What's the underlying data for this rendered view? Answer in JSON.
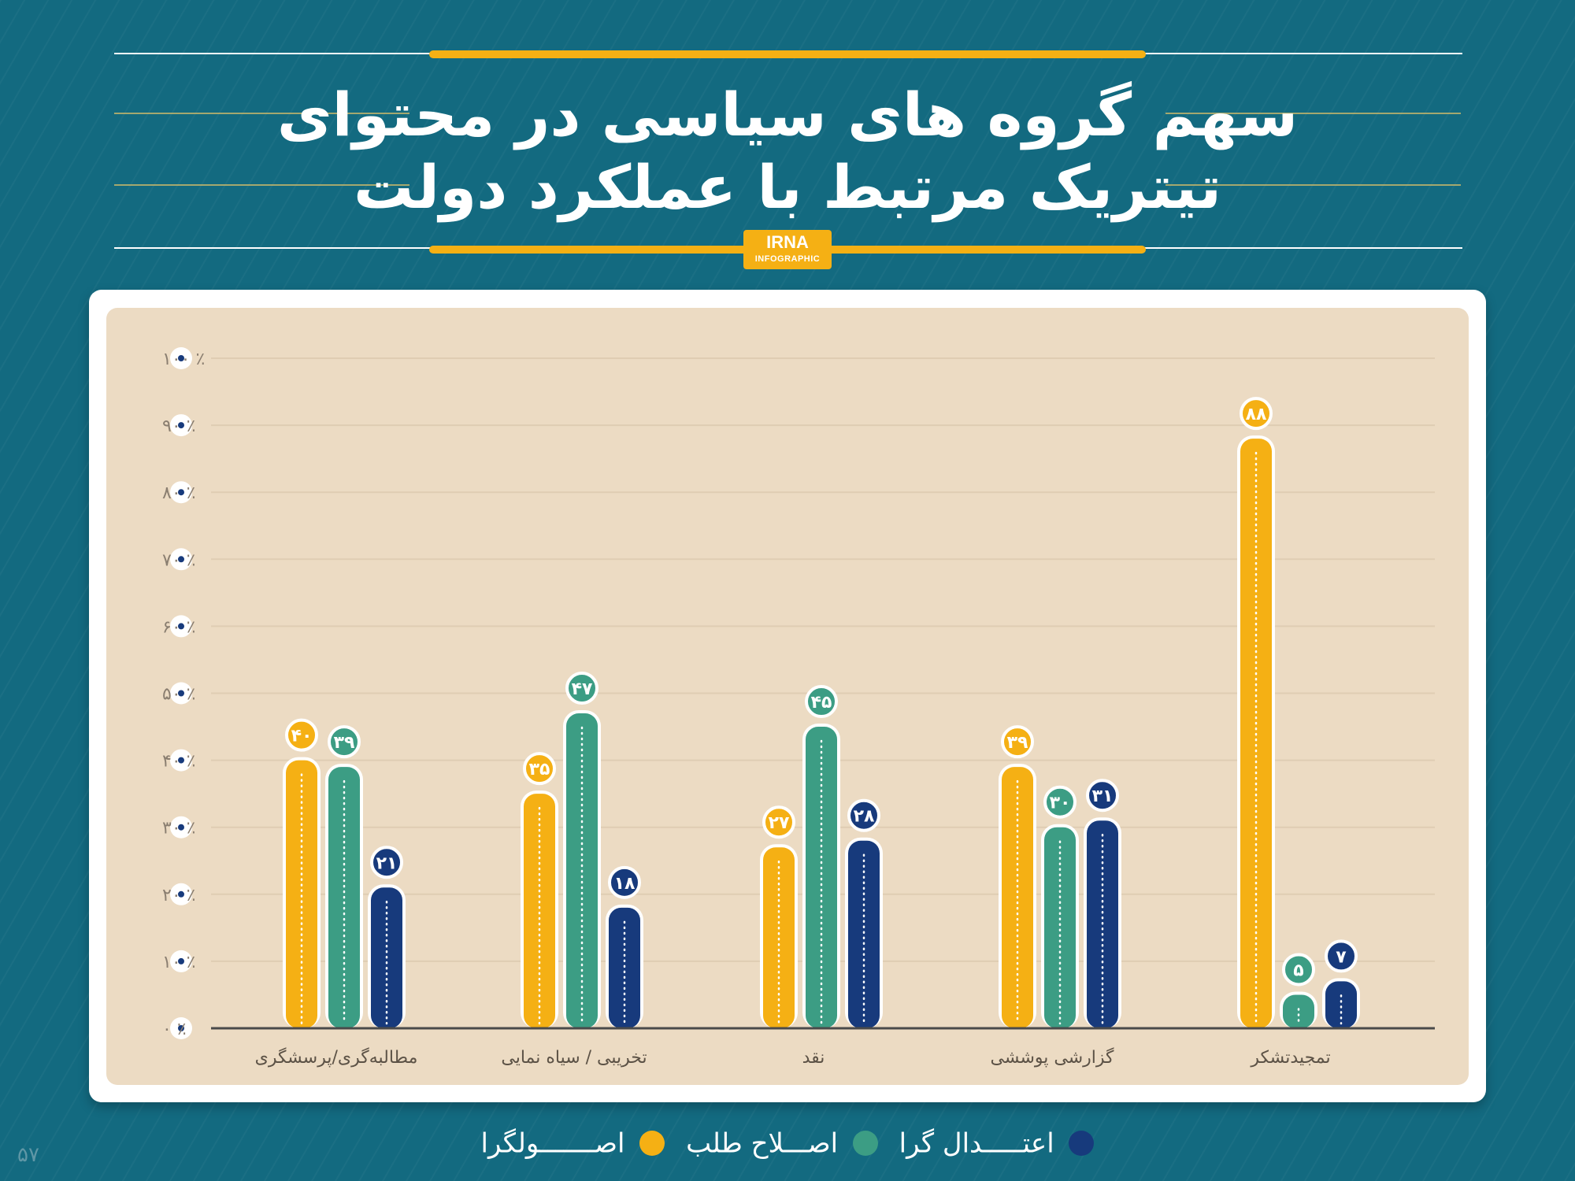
{
  "header": {
    "title_line1": "سهم گروه های سیاسی در محتوای",
    "title_line2": "تیتریک مرتبط با عملکرد دولت",
    "logo_top": "IRNA",
    "logo_bottom": "INFOGRAPHIC"
  },
  "colors": {
    "background": "#136a80",
    "panel": "#ecdbc3",
    "osulgara": "#f5b014",
    "eslahtalab": "#3c9d84",
    "etedalgara": "#173a7c"
  },
  "chart_data": {
    "type": "bar",
    "title": "سهم گروه های سیاسی در محتوای تیتریک مرتبط با عملکرد دولت",
    "categories": [
      "مطالبه‌گری/پرسشگری",
      "تخریبی / سیاه نمایی",
      "نقد",
      "گزارشی پوششی",
      "تمجیدتشکر"
    ],
    "series": [
      {
        "name": "اصولگرا",
        "color": "#f5b014",
        "values": [
          40,
          35,
          27,
          39,
          88
        ],
        "labels": [
          "۴۰",
          "۳۵",
          "۲۷",
          "۳۹",
          "۸۸"
        ]
      },
      {
        "name": "اصلاح طلب",
        "color": "#3c9d84",
        "values": [
          39,
          47,
          45,
          30,
          5
        ],
        "labels": [
          "۳۹",
          "۴۷",
          "۴۵",
          "۳۰",
          "۵"
        ]
      },
      {
        "name": "اعتدال گرا",
        "color": "#173a7c",
        "values": [
          21,
          18,
          28,
          31,
          7
        ],
        "labels": [
          "۲۱",
          "۱۸",
          "۲۸",
          "۳۱",
          "۷"
        ]
      }
    ],
    "y_ticks": [
      0,
      10,
      20,
      30,
      40,
      50,
      60,
      70,
      80,
      90,
      100
    ],
    "y_tick_labels": [
      "٪ ۰",
      "٪ ۱۰",
      "٪ ۲۰",
      "٪ ۳۰",
      "٪ ۴۰",
      "٪ ۵۰",
      "٪ ۶۰",
      "٪ ۷۰",
      "٪ ۸۰",
      "٪ ۹۰",
      "٪ ۱۰۰"
    ],
    "ylim": [
      0,
      100
    ],
    "grid": true,
    "legend_position": "bottom"
  },
  "legend": [
    {
      "label": "اعتـــــدال گرا",
      "color": "#173a7c"
    },
    {
      "label": "اصـــلاح طلب",
      "color": "#3c9d84"
    },
    {
      "label": "اصـــــــولگرا",
      "color": "#f5b014"
    }
  ],
  "page_number": "۵۷"
}
